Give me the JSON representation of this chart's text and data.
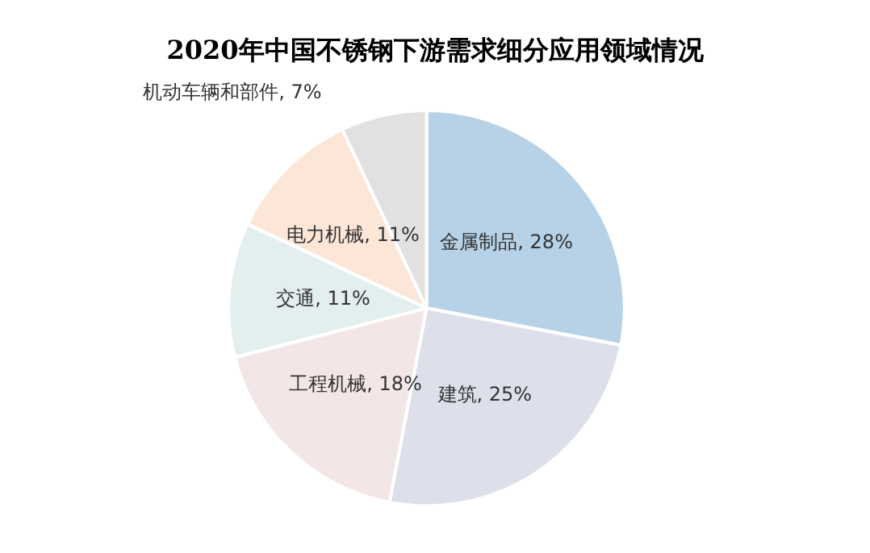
{
  "chart_data": {
    "type": "pie",
    "title": "2020年中国不锈钢下游需求细分应用领域情况",
    "categories": [
      "金属制品",
      "建筑",
      "工程机械",
      "交通",
      "电力机械",
      "机动车辆和部件"
    ],
    "values": [
      28,
      25,
      18,
      11,
      11,
      7
    ],
    "colors": [
      "#b7d2e6",
      "#dde0ea",
      "#f3e6e6",
      "#e3eeee",
      "#fce6d8",
      "#e1e1e1"
    ],
    "value_labels": [
      "28%",
      "25%",
      "18%",
      "11%",
      "11%",
      "7%"
    ],
    "legend": false
  }
}
